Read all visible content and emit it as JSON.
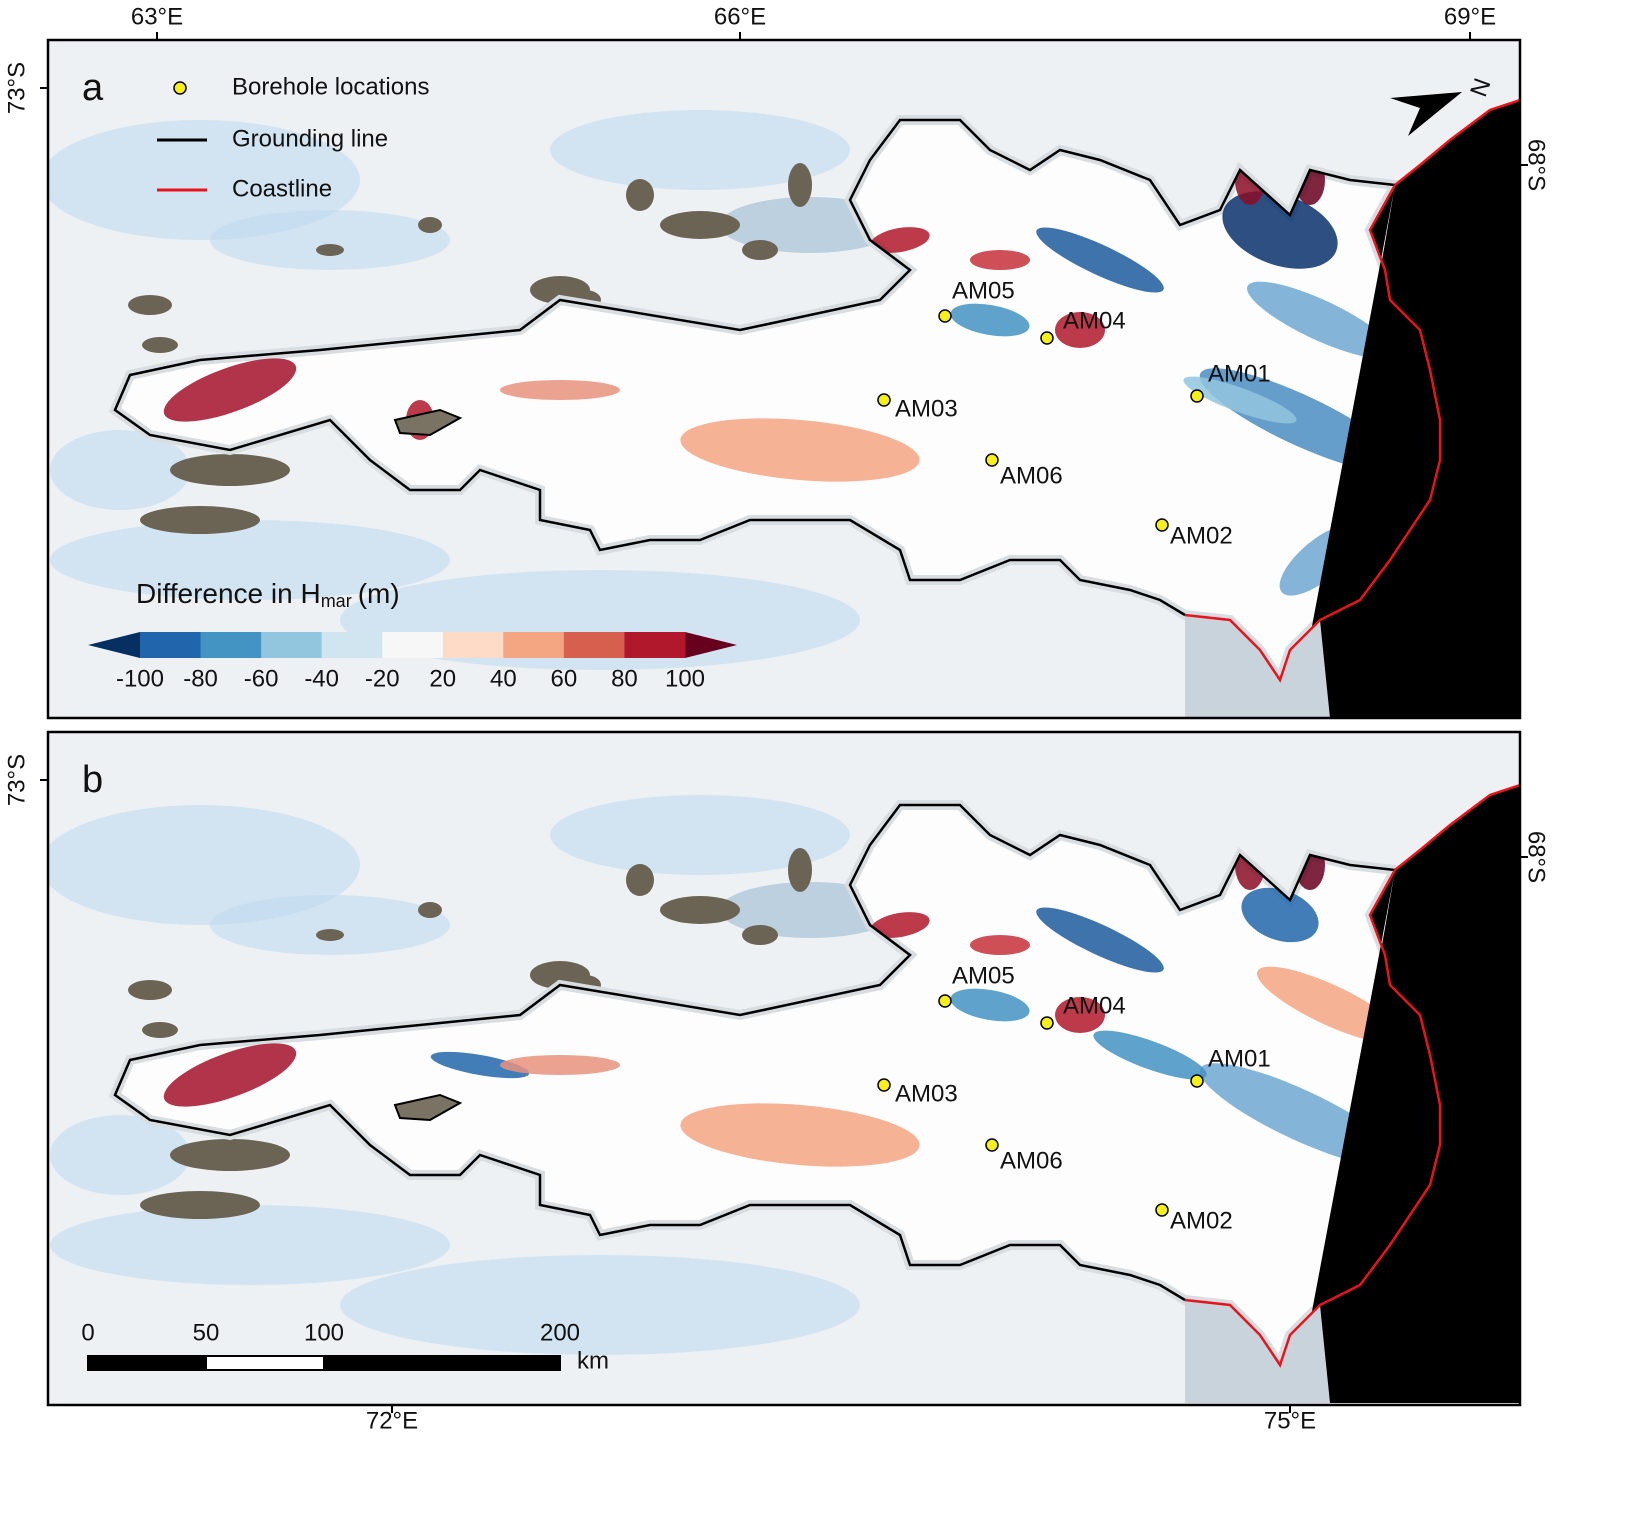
{
  "panels": [
    {
      "label": "a"
    },
    {
      "label": "b"
    }
  ],
  "axes": {
    "top": [
      "63°E",
      "66°E",
      "69°E"
    ],
    "bottom": [
      "72°E",
      "75°E"
    ],
    "left": "73°S",
    "right": "68°S"
  },
  "legend": [
    {
      "label": "Borehole locations"
    },
    {
      "label": "Grounding line",
      "color": "#000000"
    },
    {
      "label": "Coastline",
      "color": "#e8141b"
    }
  ],
  "colorbar": {
    "title": "Difference in H",
    "title_sub": "mar",
    "title_unit": "(m)",
    "ticks": [
      -100,
      -80,
      -60,
      -40,
      -20,
      20,
      40,
      60,
      80,
      100
    ],
    "colors": [
      "#2166ac",
      "#4393c3",
      "#92c5de",
      "#d1e5f0",
      "#f7f7f7",
      "#fddbc7",
      "#f4a582",
      "#d6604d",
      "#b2182b"
    ],
    "under_color": "#053061",
    "over_color": "#67001f"
  },
  "boreholes": [
    "AM01",
    "AM02",
    "AM03",
    "AM04",
    "AM05",
    "AM06"
  ],
  "scale_bar": {
    "ticks": [
      0,
      50,
      100,
      200
    ],
    "unit": "km"
  },
  "north": "N"
}
